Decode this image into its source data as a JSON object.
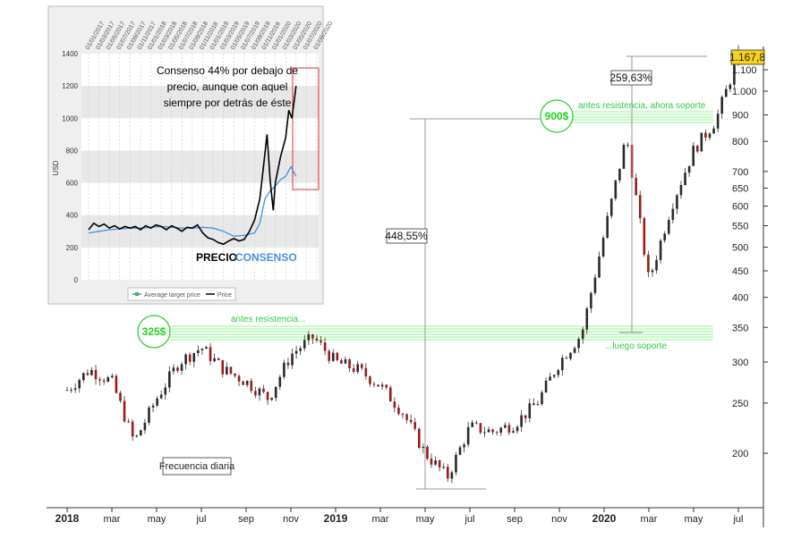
{
  "chart_data": [
    {
      "type": "candlestick",
      "frequency_label": "Frecuencia diaria",
      "y_scale": "log",
      "ylim": [
        150,
        1200
      ],
      "y_ticks": [
        "1.167,8",
        "1.100",
        "1.000",
        "900",
        "800",
        "700",
        "650",
        "600",
        "550",
        "500",
        "450",
        "400",
        "350",
        "300",
        "250",
        "200"
      ],
      "x_ticks": [
        "2018",
        "mar",
        "may",
        "jul",
        "sep",
        "nov",
        "2019",
        "mar",
        "may",
        "jul",
        "sep",
        "nov",
        "2020",
        "mar",
        "may",
        "jul"
      ],
      "last_price_label": "1.167,8",
      "price_path": [
        [
          "2018-01",
          265
        ],
        [
          "2018-02",
          290
        ],
        [
          "2018-03",
          275
        ],
        [
          "2018-04",
          210
        ],
        [
          "2018-05",
          255
        ],
        [
          "2018-06",
          300
        ],
        [
          "2018-07",
          320
        ],
        [
          "2018-08",
          290
        ],
        [
          "2018-09",
          275
        ],
        [
          "2018-10",
          255
        ],
        [
          "2018-11",
          310
        ],
        [
          "2018-12",
          335
        ],
        [
          "2019-01",
          300
        ],
        [
          "2019-02",
          290
        ],
        [
          "2019-03",
          270
        ],
        [
          "2019-04",
          240
        ],
        [
          "2019-05",
          200
        ],
        [
          "2019-06",
          180
        ],
        [
          "2019-07",
          225
        ],
        [
          "2019-08",
          220
        ],
        [
          "2019-09",
          228
        ],
        [
          "2019-10",
          250
        ],
        [
          "2019-11",
          300
        ],
        [
          "2019-12",
          340
        ],
        [
          "2020-01",
          530
        ],
        [
          "2020-02",
          820
        ],
        [
          "2020-03",
          430
        ],
        [
          "2020-04",
          600
        ],
        [
          "2020-05",
          770
        ],
        [
          "2020-06",
          880
        ],
        [
          "2020-07",
          1167.8
        ]
      ],
      "levels": [
        {
          "price_label": "325$",
          "note_left": "antes resistencia...",
          "note_right": "...luego soporte"
        },
        {
          "price_label": "900$",
          "note": "antes resistencia, ahora soporte"
        }
      ],
      "annotations": [
        {
          "text": "448,55%"
        },
        {
          "text": "259,63%"
        }
      ]
    },
    {
      "type": "line",
      "title_lines": [
        "Consenso 44% por debajo de",
        "precio, aunque con aquel",
        "siempre por detrás de éste"
      ],
      "ylabel": "USD",
      "ylim": [
        0,
        1400
      ],
      "y_ticks": [
        "0",
        "200",
        "400",
        "600",
        "800",
        "1000",
        "1200",
        "1400"
      ],
      "x_ticks": [
        "01/01/2017",
        "01/03/2017",
        "01/05/2017",
        "01/07/2017",
        "01/09/2017",
        "01/11/2017",
        "01/01/2018",
        "01/03/2018",
        "01/05/2018",
        "01/07/2018",
        "01/09/2018",
        "01/11/2018",
        "01/01/2019",
        "01/03/2019",
        "01/05/2019",
        "01/07/2019",
        "01/09/2019",
        "01/11/2019",
        "01/01/2020",
        "01/03/2020",
        "01/05/2020",
        "01/07/2020",
        "01/09/2020"
      ],
      "label_price": "PRECIO",
      "label_consensus": "CONSENSO",
      "legend": [
        "Average target price",
        "Price"
      ],
      "series": [
        {
          "name": "Price",
          "color": "#000000",
          "values": [
            [
              0,
              310
            ],
            [
              0.5,
              350
            ],
            [
              1,
              330
            ],
            [
              1.5,
              345
            ],
            [
              2,
              320
            ],
            [
              2.5,
              335
            ],
            [
              3,
              315
            ],
            [
              3.5,
              330
            ],
            [
              4,
              320
            ],
            [
              4.5,
              330
            ],
            [
              5,
              310
            ],
            [
              5.5,
              335
            ],
            [
              6,
              320
            ],
            [
              6.5,
              340
            ],
            [
              7,
              330
            ],
            [
              7.5,
              310
            ],
            [
              8,
              335
            ],
            [
              8.5,
              320
            ],
            [
              9,
              300
            ],
            [
              9.5,
              325
            ],
            [
              10,
              320
            ],
            [
              10.5,
              340
            ],
            [
              11,
              290
            ],
            [
              11.5,
              260
            ],
            [
              12,
              250
            ],
            [
              12.5,
              230
            ],
            [
              13,
              220
            ],
            [
              13.5,
              240
            ],
            [
              14,
              255
            ],
            [
              14.5,
              240
            ],
            [
              15,
              250
            ],
            [
              15.5,
              300
            ],
            [
              16,
              370
            ],
            [
              16.5,
              500
            ],
            [
              17,
              780
            ],
            [
              17.2,
              900
            ],
            [
              17.5,
              620
            ],
            [
              17.8,
              430
            ],
            [
              18,
              600
            ],
            [
              18.5,
              760
            ],
            [
              19,
              880
            ],
            [
              19.3,
              1050
            ],
            [
              19.6,
              1000
            ],
            [
              20,
              1200
            ]
          ]
        },
        {
          "name": "Average target price",
          "color": "#4a90d9",
          "values": [
            [
              0,
              290
            ],
            [
              1,
              300
            ],
            [
              2,
              310
            ],
            [
              3,
              315
            ],
            [
              4,
              320
            ],
            [
              5,
              320
            ],
            [
              6,
              325
            ],
            [
              7,
              330
            ],
            [
              8,
              325
            ],
            [
              9,
              320
            ],
            [
              10,
              320
            ],
            [
              11,
              325
            ],
            [
              12,
              320
            ],
            [
              13,
              300
            ],
            [
              14,
              270
            ],
            [
              15,
              275
            ],
            [
              16,
              290
            ],
            [
              16.5,
              350
            ],
            [
              17,
              500
            ],
            [
              17.5,
              550
            ],
            [
              18,
              580
            ],
            [
              18.5,
              620
            ],
            [
              19,
              640
            ],
            [
              19.5,
              700
            ],
            [
              20,
              640
            ]
          ]
        }
      ]
    }
  ]
}
